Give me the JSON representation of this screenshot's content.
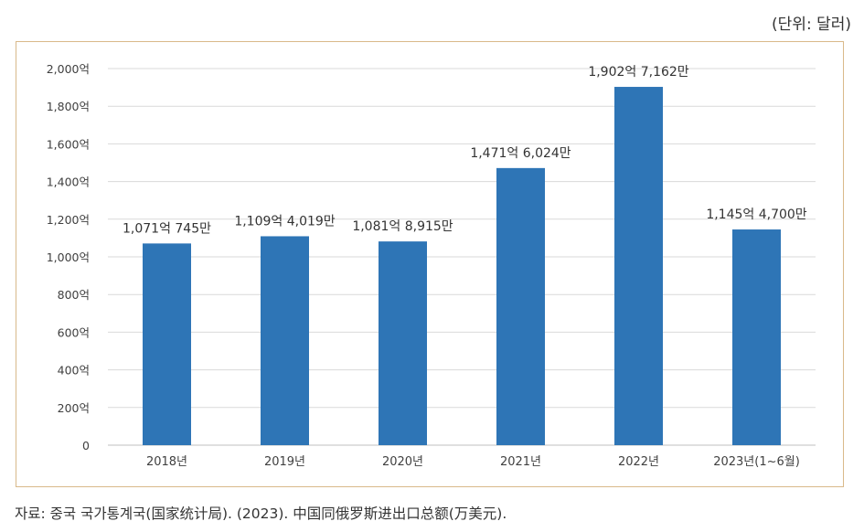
{
  "unit_note": "(단위: 달러)",
  "source_note": "자료: 중국 국가통계국(国家统计局). (2023). 中国同俄罗斯进出口总额(万美元).",
  "chart_data": {
    "type": "bar",
    "categories": [
      "2018년",
      "2019년",
      "2020년",
      "2021년",
      "2022년",
      "2023년(1~6월)"
    ],
    "values": [
      1071.0745,
      1109.4019,
      1081.8915,
      1471.6024,
      1902.7162,
      1145.47
    ],
    "data_labels": [
      "1,071억 745만",
      "1,109억 4,019만",
      "1,081억 8,915만",
      "1,471억 6,024만",
      "1,902억 7,162만",
      "1,145억 4,700만"
    ],
    "ylim": [
      0,
      2000
    ],
    "yticks": [
      0,
      200,
      400,
      600,
      800,
      1000,
      1200,
      1400,
      1600,
      1800,
      2000
    ],
    "ytick_labels": [
      "0",
      "200억",
      "400억",
      "600억",
      "800억",
      "1,000억",
      "1,200억",
      "1,400억",
      "1,600억",
      "1,800억",
      "2,000억"
    ],
    "grid": true,
    "bar_color": "#2e75b6",
    "grid_color": "#d9d9d9",
    "frame_color": "#d9b98a"
  }
}
